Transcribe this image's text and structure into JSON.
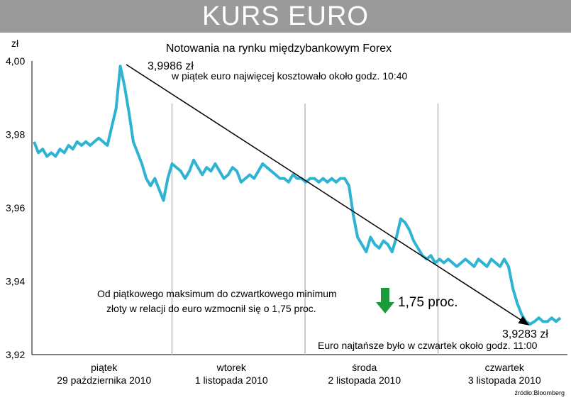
{
  "header": {
    "title": "KURS EURO"
  },
  "chart_data": {
    "type": "line",
    "title": "Notowania na rynku międzybankowym Forex",
    "ylabel": "zł",
    "ylim": [
      3.92,
      4.0
    ],
    "yticks": [
      "4,00",
      "3,98",
      "3,96",
      "3,94",
      "3,92"
    ],
    "ytick_values": [
      4.0,
      3.98,
      3.96,
      3.94,
      3.92
    ],
    "days": [
      {
        "weekday": "piątek",
        "date": "29 października 2010"
      },
      {
        "weekday": "wtorek",
        "date": "1 listopada 2010"
      },
      {
        "weekday": "środa",
        "date": "2 listopada 2010"
      },
      {
        "weekday": "czwartek",
        "date": "3 listopada 2010"
      }
    ],
    "series": [
      {
        "color": "#2fb3d3",
        "values": [
          3.978,
          3.975,
          3.976,
          3.974,
          3.975,
          3.974,
          3.976,
          3.975,
          3.977,
          3.976,
          3.978,
          3.977,
          3.978,
          3.977,
          3.978,
          3.979,
          3.978,
          3.977,
          3.982,
          3.987,
          3.9986,
          3.993,
          3.986,
          3.978,
          3.975,
          3.972,
          3.968,
          3.966,
          3.968,
          3.965,
          3.962,
          3.968,
          3.972,
          3.971,
          3.97,
          3.968,
          3.97,
          3.973,
          3.971,
          3.969,
          3.971,
          3.97,
          3.972,
          3.97,
          3.968,
          3.969,
          3.971,
          3.97,
          3.967,
          3.968,
          3.969,
          3.968,
          3.97,
          3.972,
          3.971,
          3.97,
          3.969,
          3.968,
          3.968,
          3.967,
          3.969,
          3.968,
          3.968,
          3.967,
          3.968,
          3.968,
          3.967,
          3.968,
          3.967,
          3.968,
          3.967,
          3.968,
          3.968,
          3.966,
          3.958,
          3.952,
          3.95,
          3.948,
          3.952,
          3.95,
          3.949,
          3.951,
          3.95,
          3.948,
          3.952,
          3.957,
          3.956,
          3.954,
          3.951,
          3.949,
          3.947,
          3.946,
          3.947,
          3.945,
          3.946,
          3.945,
          3.946,
          3.945,
          3.944,
          3.945,
          3.946,
          3.945,
          3.944,
          3.946,
          3.945,
          3.944,
          3.946,
          3.945,
          3.944,
          3.946,
          3.944,
          3.938,
          3.934,
          3.931,
          3.929,
          3.9283,
          3.929,
          3.93,
          3.929,
          3.929,
          3.93,
          3.929,
          3.93
        ]
      }
    ],
    "annotations": {
      "max_value": "3,9986 zł",
      "max_note": "w piątek euro najwięcej kosztowało około godz. 10:40",
      "min_value": "3,9283 zł",
      "min_note": "Euro najtańsze było w czwartek około godz. 11:00",
      "change_line1": "Od piątkowego maksimum do czwartkowego minimum",
      "change_line2": "złoty w relacji do euro wzmocnił się o 1,75 proc.",
      "change_value": "1,75 proc."
    },
    "source": "źródło:Bloomberg",
    "grid": "vertical separators between days"
  }
}
